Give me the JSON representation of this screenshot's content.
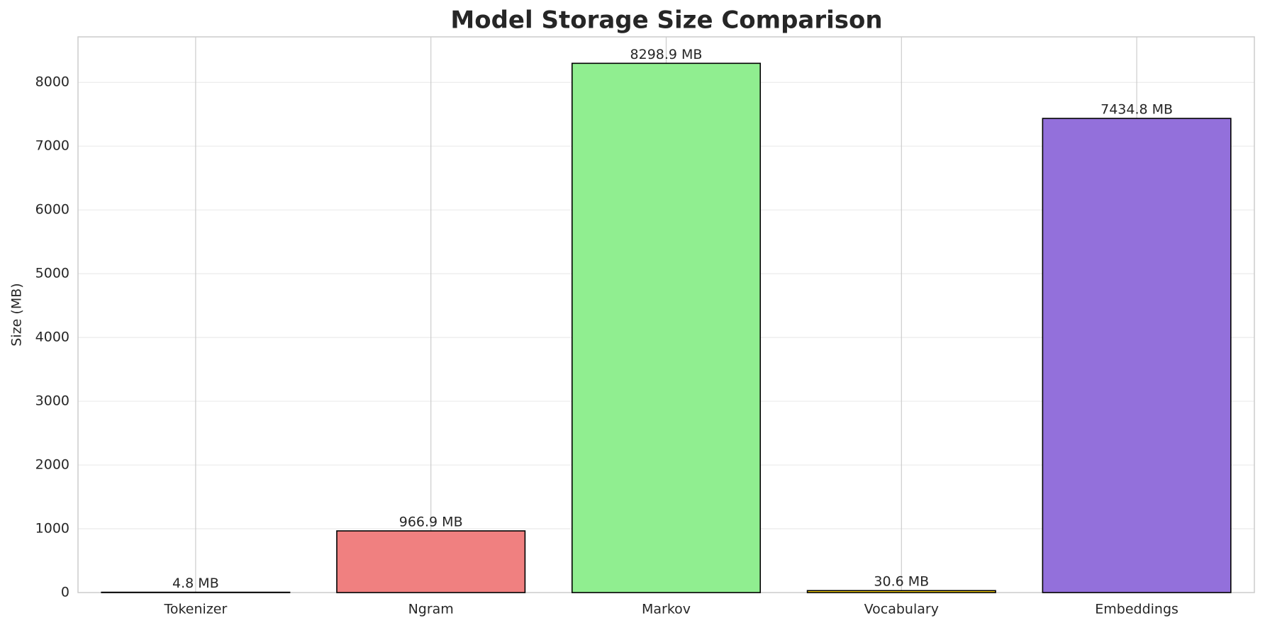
{
  "chart_data": {
    "type": "bar",
    "title": "Model Storage Size Comparison",
    "y_label": "Size (MB)",
    "categories": [
      "Tokenizer",
      "Ngram",
      "Markov",
      "Vocabulary",
      "Embeddings"
    ],
    "values": [
      4.8,
      966.9,
      8298.9,
      30.6,
      7434.8
    ],
    "value_labels": [
      "4.8 MB",
      "966.9 MB",
      "8298.9 MB",
      "30.6 MB",
      "7434.8 MB"
    ],
    "colors": [
      "#87ceeb",
      "#f08080",
      "#90ee90",
      "#ffd700",
      "#9370db"
    ],
    "ylim": [
      0,
      8713.8
    ],
    "yticks": [
      0,
      1000,
      2000,
      3000,
      4000,
      5000,
      6000,
      7000,
      8000
    ],
    "grid": true
  }
}
